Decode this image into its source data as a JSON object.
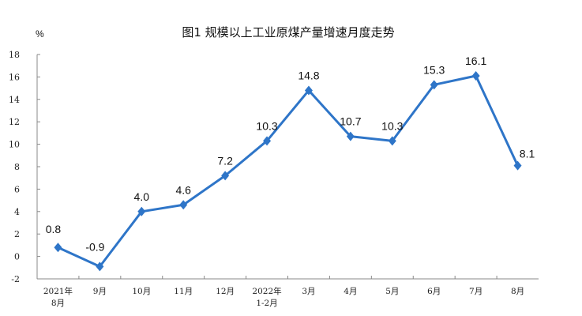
{
  "chart_data": {
    "type": "line",
    "title": "图1  规模以上工业原煤产量增速月度走势",
    "ylabel": "%",
    "xlabel": "",
    "categories": [
      [
        "2021年",
        "8月"
      ],
      [
        "9月"
      ],
      [
        "10月"
      ],
      [
        "11月"
      ],
      [
        "12月"
      ],
      [
        "2022年",
        "1-2月"
      ],
      [
        "3月"
      ],
      [
        "4月"
      ],
      [
        "5月"
      ],
      [
        "6月"
      ],
      [
        "7月"
      ],
      [
        "8月"
      ]
    ],
    "values": [
      0.8,
      -0.9,
      4.0,
      4.6,
      7.2,
      10.3,
      14.8,
      10.7,
      10.3,
      15.3,
      16.1,
      8.1
    ],
    "data_labels": [
      "0.8",
      "-0.9",
      "4.0",
      "4.6",
      "7.2",
      "10.3",
      "14.8",
      "10.7",
      "10.3",
      "15.3",
      "16.1",
      "8.1"
    ],
    "ylim": [
      -2,
      18
    ],
    "yticks": [
      "-2",
      "0",
      "2",
      "4",
      "6",
      "8",
      "10",
      "12",
      "14",
      "16",
      "18"
    ],
    "grid": false,
    "marker": "diamond",
    "line_color": "#2E75C8"
  }
}
